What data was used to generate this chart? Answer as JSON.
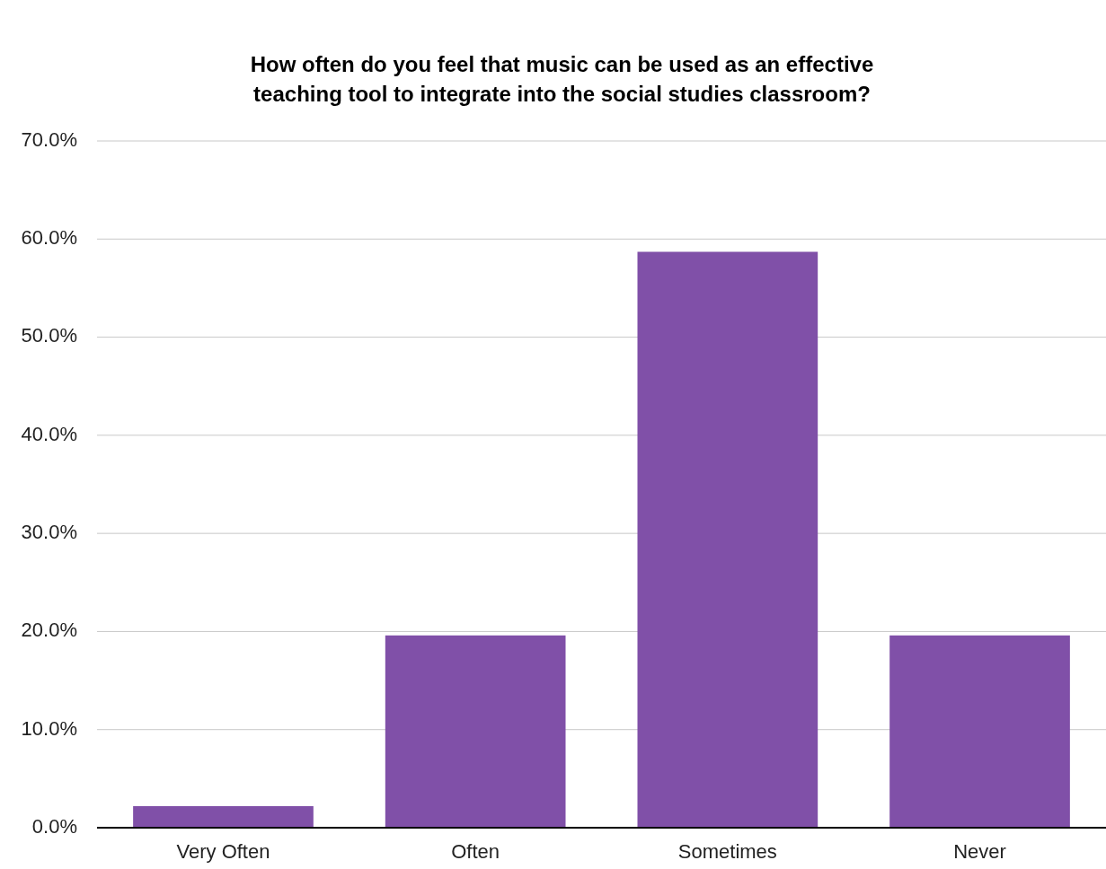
{
  "chart_data": {
    "type": "bar",
    "title": "How often do you feel that music can be used as an effective\nteaching tool to integrate into the social studies classroom?",
    "categories": [
      "Very Often",
      "Often",
      "Sometimes",
      "Never"
    ],
    "values": [
      2.2,
      19.6,
      58.7,
      19.6
    ],
    "color": "#8050a8",
    "ylim": [
      0,
      70
    ],
    "yticks": [
      {
        "value": 0,
        "label": "0.0%"
      },
      {
        "value": 10,
        "label": "10.0%"
      },
      {
        "value": 20,
        "label": "20.0%"
      },
      {
        "value": 30,
        "label": "30.0%"
      },
      {
        "value": 40,
        "label": "40.0%"
      },
      {
        "value": 50,
        "label": "50.0%"
      },
      {
        "value": 60,
        "label": "60.0%"
      },
      {
        "value": 70,
        "label": "70.0%"
      }
    ],
    "grid": true
  }
}
